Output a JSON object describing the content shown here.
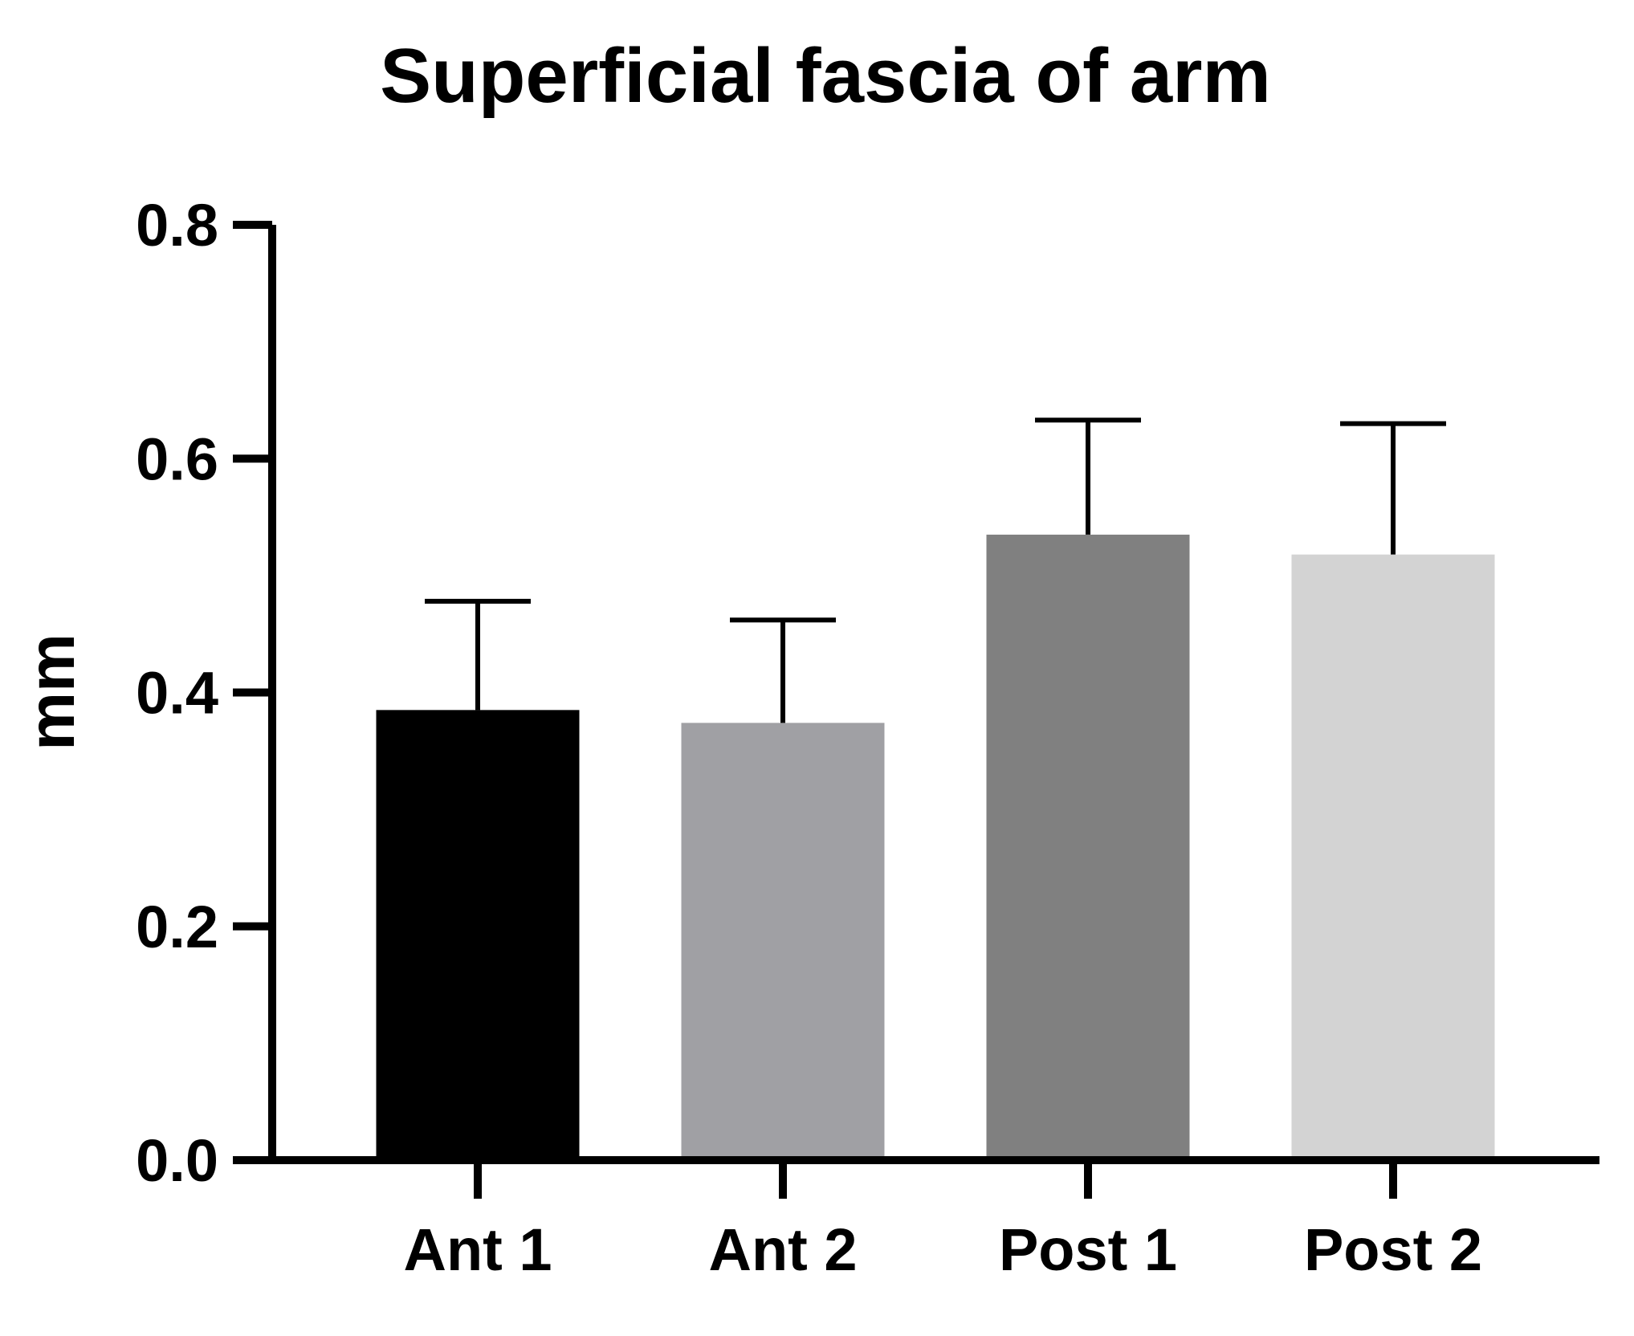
{
  "chart_data": {
    "type": "bar",
    "title": "Superficial fascia of arm",
    "ylabel": "mm",
    "xlabel": "",
    "categories": [
      "Ant 1",
      "Ant 2",
      "Post 1",
      "Post 2"
    ],
    "values": [
      0.385,
      0.374,
      0.535,
      0.518
    ],
    "error_upper": [
      0.478,
      0.462,
      0.633,
      0.63
    ],
    "bar_colors": [
      "#000000",
      "#a0a0a4",
      "#808080",
      "#d3d3d3"
    ],
    "ylim": [
      0,
      0.8
    ],
    "yticks": [
      0.0,
      0.2,
      0.4,
      0.6,
      0.8
    ],
    "ytick_labels": [
      "0.0",
      "0.2",
      "0.4",
      "0.6",
      "0.8"
    ],
    "grid": false,
    "legend": "none"
  }
}
